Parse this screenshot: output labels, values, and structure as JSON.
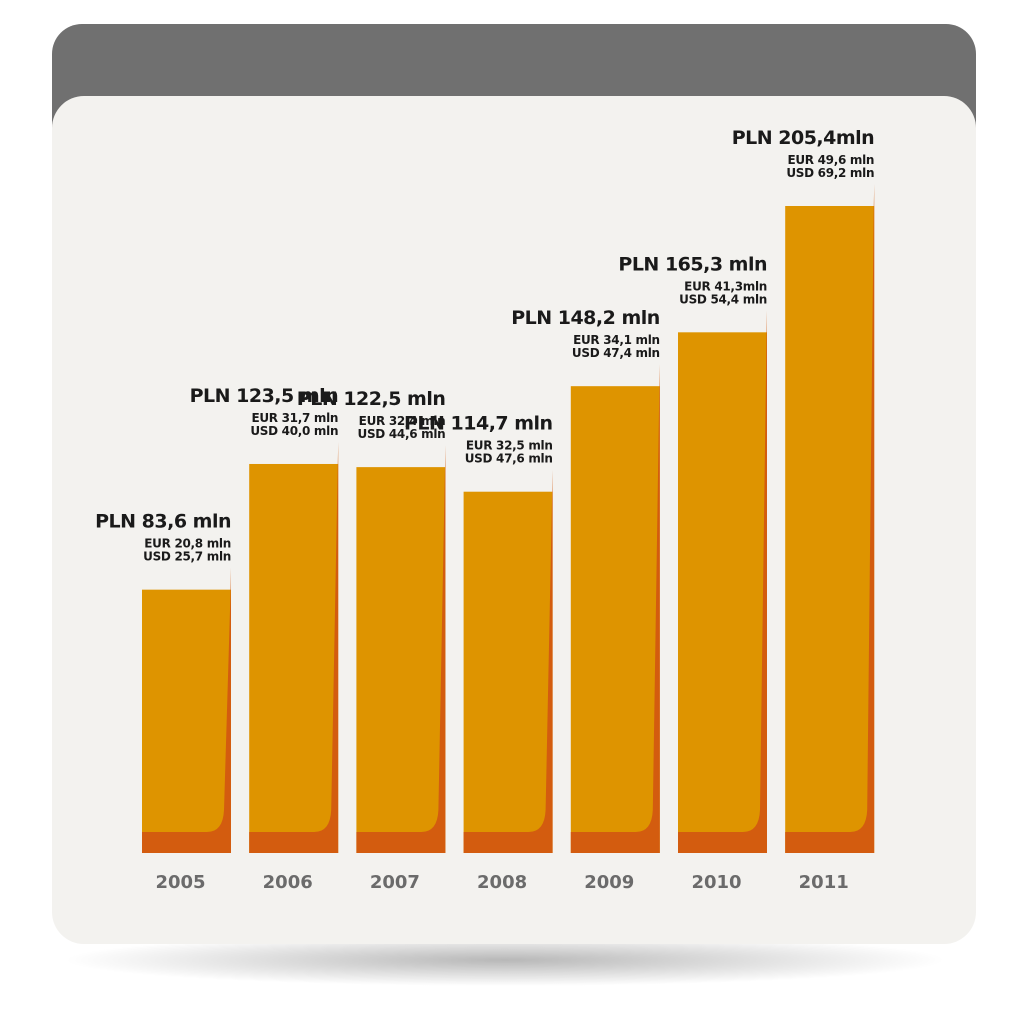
{
  "colors": {
    "header": "#707070",
    "panel": "#f3f2ef",
    "bar": "#de9400",
    "bar_shade": "#d35c0f",
    "year_text": "#6b6b6b",
    "label_text": "#1a1a1a"
  },
  "chart_data": {
    "type": "bar",
    "title": "",
    "xlabel": "",
    "ylabel": "",
    "ylim": [
      0,
      205.4
    ],
    "grid": false,
    "legend": "none",
    "categories": [
      "2005",
      "2006",
      "2007",
      "2008",
      "2009",
      "2010",
      "2011"
    ],
    "values": [
      83.6,
      123.5,
      122.5,
      114.7,
      148.2,
      165.3,
      205.4
    ],
    "labels": [
      {
        "pln": "PLN 83,6 mln",
        "eur": "EUR 20,8 mln",
        "usd": "USD 25,7 mln"
      },
      {
        "pln": "PLN 123,5 mln",
        "eur": "EUR 31,7 mln",
        "usd": "USD 40,0 mln"
      },
      {
        "pln": "PLN 122,5 mln",
        "eur": "EUR 32,4 mln",
        "usd": "USD 44,6 mln"
      },
      {
        "pln": "PLN 114,7 mln",
        "eur": "EUR 32,5 mln",
        "usd": "USD 47,6 mln"
      },
      {
        "pln": "PLN 148,2 mln",
        "eur": "EUR 34,1 mln",
        "usd": "USD 47,4 mln"
      },
      {
        "pln": "PLN 165,3 mln",
        "eur": "EUR 41,3mln",
        "usd": "USD 54,4 mln"
      },
      {
        "pln": "PLN 205,4mln",
        "eur": "EUR 49,6 mln",
        "usd": "USD 69,2 mln"
      }
    ]
  }
}
